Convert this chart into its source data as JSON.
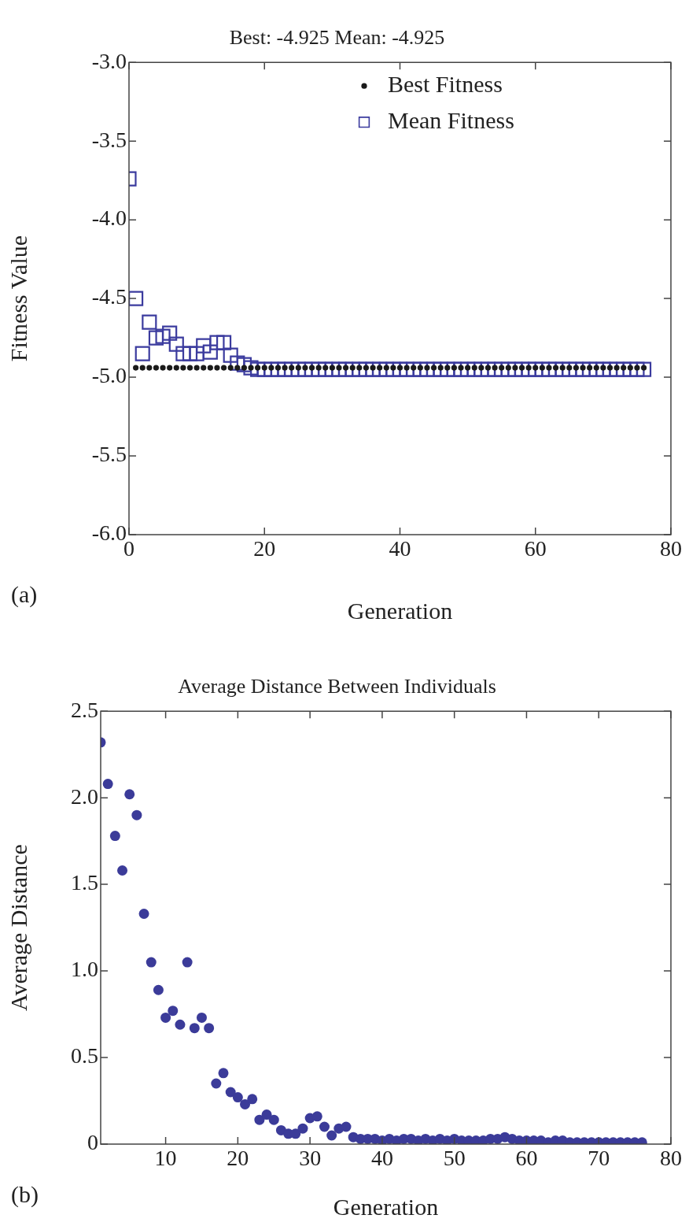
{
  "chart_data": [
    {
      "type": "scatter",
      "title": "Best: -4.925 Mean: -4.925",
      "xlabel": "Generation",
      "ylabel": "Fitness Value",
      "annotations": [
        "(a)"
      ],
      "legend": "top right",
      "xlim": [
        0,
        80
      ],
      "xticks": [
        0,
        20,
        40,
        60,
        80
      ],
      "ylim": [
        -6,
        -3
      ],
      "yticks": [
        {
          "value": -6,
          "label": "-6.0"
        },
        {
          "value": -5.5,
          "label": "-5.5"
        },
        {
          "value": -5,
          "label": "-5.0"
        },
        {
          "value": -4.5,
          "label": "-4.5"
        },
        {
          "value": -4,
          "label": "-4.0"
        },
        {
          "value": -3.5,
          "label": "-3.5"
        },
        {
          "value": -3,
          "label": "-3.0"
        }
      ],
      "series": [
        {
          "name": "Best Fitness",
          "color": "#1a1a1a",
          "marker": "circle",
          "x": [
            1,
            2,
            3,
            4,
            5,
            6,
            7,
            8,
            9,
            10,
            11,
            12,
            13,
            14,
            15,
            16,
            17,
            18,
            19,
            20,
            21,
            22,
            23,
            24,
            25,
            26,
            27,
            28,
            29,
            30,
            31,
            32,
            33,
            34,
            35,
            36,
            37,
            38,
            39,
            40,
            41,
            42,
            43,
            44,
            45,
            46,
            47,
            48,
            49,
            50,
            51,
            52,
            53,
            54,
            55,
            56,
            57,
            58,
            59,
            60,
            61,
            62,
            63,
            64,
            65,
            66,
            67,
            68,
            69,
            70,
            71,
            72,
            73,
            74,
            75,
            76
          ],
          "values": [
            -4.94,
            -4.94,
            -4.94,
            -4.94,
            -4.94,
            -4.94,
            -4.94,
            -4.94,
            -4.94,
            -4.94,
            -4.94,
            -4.94,
            -4.94,
            -4.94,
            -4.94,
            -4.94,
            -4.94,
            -4.94,
            -4.94,
            -4.94,
            -4.94,
            -4.94,
            -4.94,
            -4.94,
            -4.94,
            -4.94,
            -4.94,
            -4.94,
            -4.94,
            -4.94,
            -4.94,
            -4.94,
            -4.94,
            -4.94,
            -4.94,
            -4.94,
            -4.94,
            -4.94,
            -4.94,
            -4.94,
            -4.94,
            -4.94,
            -4.94,
            -4.94,
            -4.94,
            -4.94,
            -4.94,
            -4.94,
            -4.94,
            -4.94,
            -4.94,
            -4.94,
            -4.94,
            -4.94,
            -4.94,
            -4.94,
            -4.94,
            -4.94,
            -4.94,
            -4.94,
            -4.94,
            -4.94,
            -4.94,
            -4.94,
            -4.94,
            -4.94,
            -4.94,
            -4.94,
            -4.94,
            -4.94,
            -4.94,
            -4.94,
            -4.94,
            -4.94,
            -4.94,
            -4.94
          ]
        },
        {
          "name": "Mean Fitness",
          "color": "#3b3b9e",
          "marker": "square",
          "x": [
            0,
            1,
            2,
            3,
            4,
            5,
            6,
            7,
            8,
            9,
            10,
            11,
            12,
            13,
            14,
            15,
            16,
            17,
            18,
            19,
            20,
            21,
            22,
            23,
            24,
            25,
            26,
            27,
            28,
            29,
            30,
            31,
            32,
            33,
            34,
            35,
            36,
            37,
            38,
            39,
            40,
            41,
            42,
            43,
            44,
            45,
            46,
            47,
            48,
            49,
            50,
            51,
            52,
            53,
            54,
            55,
            56,
            57,
            58,
            59,
            60,
            61,
            62,
            63,
            64,
            65,
            66,
            67,
            68,
            69,
            70,
            71,
            72,
            73,
            74,
            75,
            76
          ],
          "values": [
            -3.74,
            -4.5,
            -4.85,
            -4.65,
            -4.75,
            -4.74,
            -4.72,
            -4.79,
            -4.85,
            -4.85,
            -4.85,
            -4.8,
            -4.84,
            -4.78,
            -4.78,
            -4.86,
            -4.91,
            -4.92,
            -4.94,
            -4.95,
            -4.95,
            -4.95,
            -4.95,
            -4.95,
            -4.95,
            -4.95,
            -4.95,
            -4.95,
            -4.95,
            -4.95,
            -4.95,
            -4.95,
            -4.95,
            -4.95,
            -4.95,
            -4.95,
            -4.95,
            -4.95,
            -4.95,
            -4.95,
            -4.95,
            -4.95,
            -4.95,
            -4.95,
            -4.95,
            -4.95,
            -4.95,
            -4.95,
            -4.95,
            -4.95,
            -4.95,
            -4.95,
            -4.95,
            -4.95,
            -4.95,
            -4.95,
            -4.95,
            -4.95,
            -4.95,
            -4.95,
            -4.95,
            -4.95,
            -4.95,
            -4.95,
            -4.95,
            -4.95,
            -4.95,
            -4.95,
            -4.95,
            -4.95,
            -4.95,
            -4.95,
            -4.95,
            -4.95,
            -4.95,
            -4.95,
            -4.95
          ]
        }
      ]
    },
    {
      "type": "scatter",
      "title": "Average Distance Between Individuals",
      "xlabel": "Generation",
      "ylabel": "Average Distance",
      "annotations": [
        "(b)"
      ],
      "xlim": [
        1,
        80
      ],
      "xticks": [
        10,
        20,
        30,
        40,
        50,
        60,
        70,
        80
      ],
      "ylim": [
        0,
        2.5
      ],
      "yticks": [
        0,
        0.5,
        {
          "value": 1,
          "label": "1.0"
        },
        1.5,
        {
          "value": 2,
          "label": "2.0"
        },
        2.5
      ],
      "series": [
        {
          "color": "#3b3b99",
          "marker": "circle",
          "x": [
            1,
            2,
            3,
            4,
            5,
            6,
            7,
            8,
            9,
            10,
            11,
            12,
            13,
            14,
            15,
            16,
            17,
            18,
            19,
            20,
            21,
            22,
            23,
            24,
            25,
            26,
            27,
            28,
            29,
            30,
            31,
            32,
            33,
            34,
            35,
            36,
            37,
            38,
            39,
            40,
            41,
            42,
            43,
            44,
            45,
            46,
            47,
            48,
            49,
            50,
            51,
            52,
            53,
            54,
            55,
            56,
            57,
            58,
            59,
            60,
            61,
            62,
            63,
            64,
            65,
            66,
            67,
            68,
            69,
            70,
            71,
            72,
            73,
            74,
            75,
            76
          ],
          "values": [
            2.32,
            2.08,
            1.78,
            1.58,
            2.02,
            1.9,
            1.33,
            1.05,
            0.89,
            0.73,
            0.77,
            0.69,
            1.05,
            0.67,
            0.73,
            0.67,
            0.35,
            0.41,
            0.3,
            0.27,
            0.23,
            0.26,
            0.14,
            0.17,
            0.14,
            0.08,
            0.06,
            0.06,
            0.09,
            0.15,
            0.16,
            0.1,
            0.05,
            0.09,
            0.1,
            0.04,
            0.03,
            0.03,
            0.03,
            0.02,
            0.03,
            0.02,
            0.03,
            0.03,
            0.02,
            0.03,
            0.02,
            0.03,
            0.02,
            0.03,
            0.02,
            0.02,
            0.02,
            0.02,
            0.03,
            0.03,
            0.04,
            0.03,
            0.02,
            0.02,
            0.02,
            0.02,
            0.01,
            0.02,
            0.02,
            0.01,
            0.01,
            0.01,
            0.01,
            0.01,
            0.01,
            0.01,
            0.01,
            0.01,
            0.01,
            0.01
          ]
        }
      ]
    }
  ]
}
